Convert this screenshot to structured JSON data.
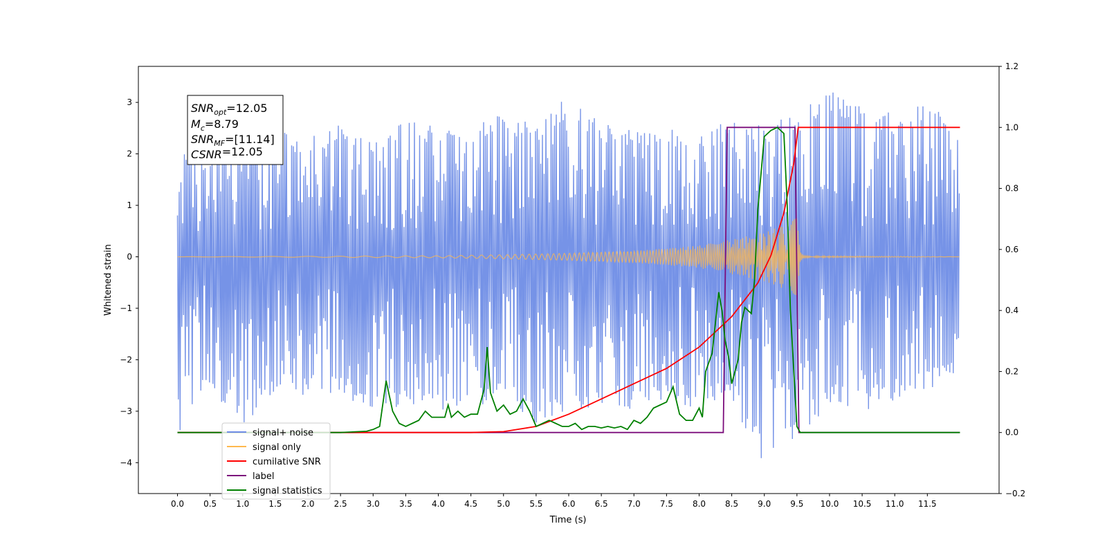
{
  "chart_data": {
    "type": "line",
    "xlabel": "Time (s)",
    "ylabel": "Whitened strain",
    "xlim": [
      -0.6,
      12.6
    ],
    "ylim": [
      -4.6,
      3.7
    ],
    "ylim_right": [
      -0.2,
      1.2
    ],
    "x_ticks": [
      "0.0",
      "0.5",
      "1.0",
      "1.5",
      "2.0",
      "2.5",
      "3.0",
      "3.5",
      "4.0",
      "4.5",
      "5.0",
      "5.5",
      "6.0",
      "6.5",
      "7.0",
      "7.5",
      "8.0",
      "8.5",
      "9.0",
      "9.5",
      "10.0",
      "10.5",
      "11.0",
      "11.5"
    ],
    "y_ticks_left": [
      "3",
      "2",
      "1",
      "0",
      "−1",
      "−2",
      "−3",
      "−4"
    ],
    "y_ticks_right": [
      "1.2",
      "1.0",
      "0.8",
      "0.6",
      "0.4",
      "0.2",
      "0.0",
      "−0.2"
    ],
    "grid": false,
    "legend_position": "lower-left",
    "annotation": {
      "lines": [
        {
          "sym": "SNR",
          "sub": "opt",
          "val": "=12.05"
        },
        {
          "sym": "M",
          "sub": "c",
          "val": "=8.79"
        },
        {
          "sym": "SNR",
          "sub": "MF",
          "val": "=[11.14]"
        },
        {
          "sym": "CSNR",
          "sub": "",
          "val": "=12.05"
        }
      ]
    },
    "series": [
      {
        "name": "signal+ noise",
        "axis": "left",
        "color": "#6f8de6",
        "x_range": [
          0.0,
          12.0
        ],
        "envelope_upper": [
          2.1,
          1.9,
          2.4,
          2.5,
          2.3,
          2.6,
          2.4,
          2.7,
          2.5,
          2.6,
          2.8,
          2.6,
          3.2,
          2.6,
          2.5,
          2.5,
          2.4,
          2.7,
          2.6,
          2.8,
          3.3,
          2.9,
          2.8,
          3.0,
          2.6
        ],
        "envelope_lower": [
          -3.5,
          -2.6,
          -3.3,
          -2.6,
          -2.7,
          -2.7,
          -3.0,
          -2.9,
          -3.0,
          -3.1,
          -2.7,
          -3.4,
          -3.0,
          -2.9,
          -3.0,
          -2.8,
          -3.0,
          -2.8,
          -4.1,
          -3.6,
          -2.9,
          -3.0,
          -2.8,
          -2.6,
          -2.2
        ]
      },
      {
        "name": "signal only",
        "axis": "left",
        "color": "#ffb84d",
        "x": [
          0.0,
          4.0,
          5.0,
          6.0,
          7.0,
          7.5,
          8.0,
          8.5,
          9.0,
          9.3,
          9.5,
          9.55,
          9.6,
          12.0
        ],
        "amplitude": [
          0.0,
          0.02,
          0.04,
          0.07,
          0.12,
          0.16,
          0.22,
          0.34,
          0.48,
          0.62,
          0.76,
          0.1,
          0.02,
          0.0
        ]
      },
      {
        "name": "cumilative SNR",
        "axis": "right",
        "color": "#ff0000",
        "x": [
          0.0,
          4.5,
          5.0,
          5.5,
          6.0,
          6.5,
          7.0,
          7.5,
          8.0,
          8.5,
          8.9,
          9.1,
          9.3,
          9.45,
          9.52,
          9.6,
          12.0
        ],
        "y": [
          0.0,
          0.0,
          0.003,
          0.02,
          0.06,
          0.11,
          0.16,
          0.21,
          0.28,
          0.38,
          0.49,
          0.58,
          0.72,
          0.88,
          1.0,
          1.0,
          1.0
        ]
      },
      {
        "name": "label",
        "axis": "right",
        "color": "#7b0c7b",
        "x": [
          0.0,
          8.37,
          8.43,
          9.47,
          9.53,
          12.0
        ],
        "y": [
          0.0,
          0.0,
          1.0,
          1.0,
          0.0,
          0.0
        ]
      },
      {
        "name": "signal statistics",
        "axis": "right",
        "color": "#008000",
        "x": [
          0.0,
          2.5,
          2.9,
          3.0,
          3.1,
          3.2,
          3.3,
          3.4,
          3.5,
          3.6,
          3.7,
          3.8,
          3.9,
          4.0,
          4.1,
          4.15,
          4.2,
          4.3,
          4.4,
          4.5,
          4.6,
          4.7,
          4.75,
          4.8,
          4.9,
          5.0,
          5.1,
          5.2,
          5.3,
          5.4,
          5.5,
          5.6,
          5.7,
          5.8,
          5.9,
          6.0,
          6.1,
          6.2,
          6.3,
          6.4,
          6.5,
          6.6,
          6.7,
          6.8,
          6.9,
          7.0,
          7.1,
          7.2,
          7.3,
          7.4,
          7.5,
          7.6,
          7.7,
          7.8,
          7.9,
          8.0,
          8.05,
          8.1,
          8.2,
          8.3,
          8.35,
          8.4,
          8.45,
          8.5,
          8.6,
          8.65,
          8.7,
          8.8,
          8.85,
          8.9,
          9.0,
          9.1,
          9.2,
          9.3,
          9.35,
          9.4,
          9.5,
          9.55,
          9.6,
          12.0
        ],
        "y": [
          0.0,
          0.0,
          0.004,
          0.01,
          0.02,
          0.17,
          0.07,
          0.03,
          0.02,
          0.03,
          0.04,
          0.07,
          0.05,
          0.05,
          0.05,
          0.09,
          0.05,
          0.07,
          0.05,
          0.06,
          0.06,
          0.14,
          0.28,
          0.13,
          0.07,
          0.09,
          0.06,
          0.07,
          0.11,
          0.07,
          0.02,
          0.03,
          0.04,
          0.03,
          0.02,
          0.02,
          0.03,
          0.01,
          0.02,
          0.02,
          0.015,
          0.02,
          0.015,
          0.02,
          0.01,
          0.04,
          0.03,
          0.05,
          0.08,
          0.09,
          0.1,
          0.15,
          0.06,
          0.04,
          0.04,
          0.08,
          0.05,
          0.2,
          0.26,
          0.46,
          0.4,
          0.3,
          0.25,
          0.16,
          0.24,
          0.36,
          0.41,
          0.39,
          0.5,
          0.73,
          0.97,
          0.99,
          1.0,
          0.98,
          0.75,
          0.4,
          0.02,
          0.0,
          0.0,
          0.0
        ]
      }
    ]
  }
}
